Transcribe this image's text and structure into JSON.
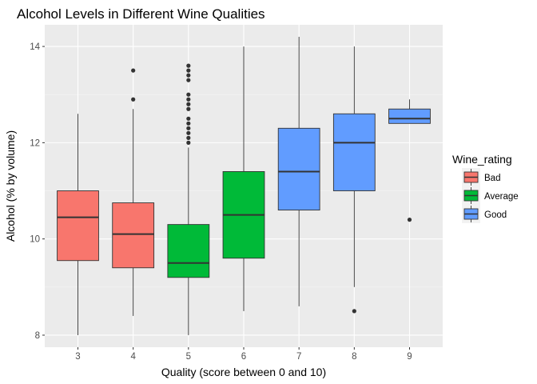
{
  "chart_data": {
    "type": "boxplot",
    "title": "Alcohol Levels in Different Wine Qualities",
    "xlabel": "Quality (score between 0 and 10)",
    "ylabel": "Alcohol (% by volume)",
    "categories": [
      "3",
      "4",
      "5",
      "6",
      "7",
      "8",
      "9"
    ],
    "yticks": [
      8,
      10,
      12,
      14
    ],
    "ylim": [
      7.75,
      14.45
    ],
    "grid": true,
    "legend": {
      "title": "Wine_rating",
      "placement": "right",
      "entries": [
        {
          "label": "Bad",
          "color": "#F8766D"
        },
        {
          "label": "Average",
          "color": "#00BA38"
        },
        {
          "label": "Good",
          "color": "#619CFF"
        }
      ]
    },
    "boxes": [
      {
        "x": "3",
        "group": "Bad",
        "min": 8.0,
        "q1": 9.55,
        "median": 10.45,
        "q3": 11.0,
        "max": 12.6,
        "outliers": []
      },
      {
        "x": "4",
        "group": "Bad",
        "min": 8.4,
        "q1": 9.4,
        "median": 10.1,
        "q3": 10.75,
        "max": 12.7,
        "outliers": [
          12.9,
          13.5
        ]
      },
      {
        "x": "5",
        "group": "Average",
        "min": 8.0,
        "q1": 9.2,
        "median": 9.5,
        "q3": 10.3,
        "max": 11.9,
        "outliers": [
          12.0,
          12.1,
          12.2,
          12.3,
          12.4,
          12.5,
          12.7,
          12.8,
          12.9,
          13.0,
          13.3,
          13.4,
          13.5,
          13.6
        ]
      },
      {
        "x": "6",
        "group": "Average",
        "min": 8.5,
        "q1": 9.6,
        "median": 10.5,
        "q3": 11.4,
        "max": 14.0,
        "outliers": []
      },
      {
        "x": "7",
        "group": "Good",
        "min": 8.6,
        "q1": 10.6,
        "median": 11.4,
        "q3": 12.3,
        "max": 14.2,
        "outliers": []
      },
      {
        "x": "8",
        "group": "Good",
        "min": 9.0,
        "q1": 11.0,
        "median": 12.0,
        "q3": 12.6,
        "max": 14.0,
        "outliers": [
          8.5
        ]
      },
      {
        "x": "9",
        "group": "Good",
        "min": 12.4,
        "q1": 12.4,
        "median": 12.5,
        "q3": 12.7,
        "max": 12.9,
        "outliers": [
          10.4
        ]
      }
    ]
  }
}
